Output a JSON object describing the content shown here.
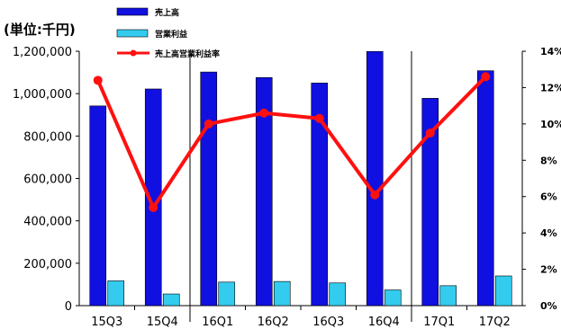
{
  "unit_label": "(単位:千円)",
  "legend": {
    "sales": "売上高",
    "op_profit": "営業利益",
    "margin": "売上高営業利益率"
  },
  "colors": {
    "sales": "#1010e0",
    "op_profit": "#33ccee",
    "margin": "#ff1010",
    "axis": "#000000"
  },
  "chart_data": {
    "type": "bar",
    "categories": [
      "15Q3",
      "15Q4",
      "16Q1",
      "16Q2",
      "16Q3",
      "16Q4",
      "17Q1",
      "17Q2"
    ],
    "series": [
      {
        "name": "売上高",
        "kind": "bar",
        "axis": "left",
        "values": [
          942000,
          1022000,
          1102000,
          1076000,
          1050000,
          1199000,
          978000,
          1108000
        ]
      },
      {
        "name": "営業利益",
        "kind": "bar",
        "axis": "left",
        "values": [
          117000,
          55000,
          111000,
          114000,
          107000,
          74000,
          94000,
          140000
        ]
      },
      {
        "name": "売上高営業利益率",
        "kind": "line",
        "axis": "right",
        "values": [
          12.4,
          5.4,
          10.0,
          10.6,
          10.3,
          6.1,
          9.5,
          12.6
        ]
      }
    ],
    "y_left": {
      "min": 0,
      "max": 1200000,
      "ticks": [
        "0",
        "200,000",
        "400,000",
        "600,000",
        "800,000",
        "1,000,000",
        "1,200,000"
      ]
    },
    "y_right": {
      "min": 0,
      "max": 14,
      "ticks": [
        "0%",
        "2%",
        "4%",
        "6%",
        "8%",
        "10%",
        "12%",
        "14%"
      ]
    },
    "year_dividers_after": [
      1,
      5
    ],
    "grid": false,
    "legend_position": "top-left"
  }
}
